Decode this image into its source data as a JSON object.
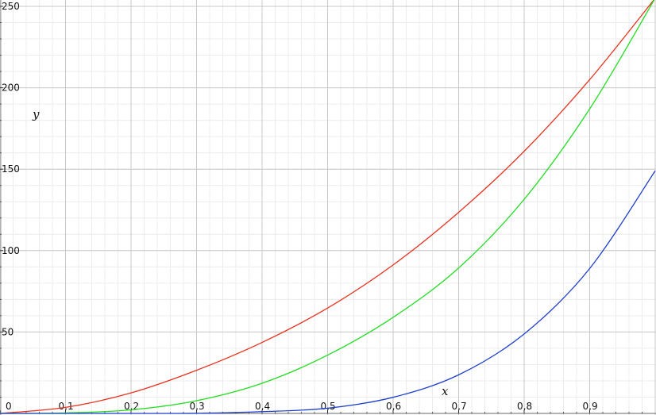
{
  "chart_data": {
    "type": "line",
    "title": "",
    "xlabel": "x",
    "ylabel": "y",
    "xlim": [
      0,
      1
    ],
    "ylim": [
      0,
      250
    ],
    "grid": true,
    "minor_grid": true,
    "legend": "none",
    "x_tick_labels": [
      "0",
      "0,1",
      "0,2",
      "0,3",
      "0,4",
      "0,5",
      "0,6",
      "0,7",
      "0,8",
      "0,9"
    ],
    "y_tick_labels": [
      "250",
      "200",
      "150",
      "100",
      "50"
    ],
    "x": [
      0,
      0.1,
      0.2,
      0.3,
      0.4,
      0.5,
      0.6,
      0.7,
      0.8,
      0.9,
      1.0
    ],
    "series": [
      {
        "color": "#e8321e",
        "values": [
          0,
          3.7,
          12.6,
          26.5,
          43.6,
          64.7,
          91.2,
          123.5,
          161.0,
          205.0,
          255.0
        ]
      },
      {
        "color": "#22dd22",
        "values": [
          0,
          0.3,
          2.2,
          7.8,
          18.5,
          35.8,
          59.0,
          89.3,
          131.5,
          187.0,
          255.0
        ]
      },
      {
        "color": "#1e3fcc",
        "values": [
          0,
          0,
          0,
          0.1,
          1.1,
          3.2,
          9.9,
          23.7,
          48.8,
          89.0,
          149.0
        ]
      }
    ]
  }
}
